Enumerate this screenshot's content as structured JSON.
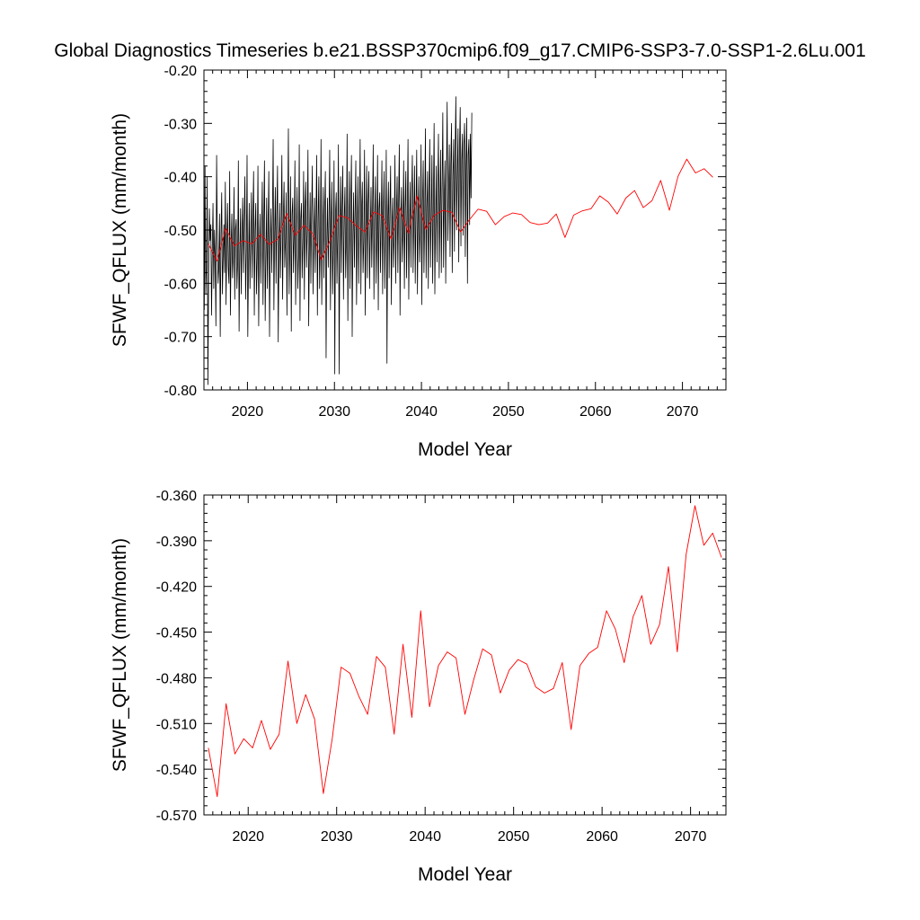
{
  "title": "Global Diagnostics Timeseries b.e21.BSSP370cmip6.f09_g17.CMIP6-SSP3-7.0-SSP1-2.6Lu.001",
  "colors": {
    "monthly": "#000000",
    "annual": "#ff0000"
  },
  "chart_data": [
    {
      "type": "line",
      "ylabel": "SFWF_QFLUX (mm/month)",
      "xlabel": "Model Year",
      "xlim": [
        2015,
        2075
      ],
      "ylim": [
        -0.8,
        -0.2
      ],
      "x_ticks": [
        2020,
        2030,
        2040,
        2050,
        2060,
        2070
      ],
      "x_tick_labels": [
        "2020",
        "2030",
        "2040",
        "2050",
        "2060",
        "2070"
      ],
      "y_ticks": [
        -0.2,
        -0.3,
        -0.4,
        -0.5,
        -0.6,
        -0.7,
        -0.8
      ],
      "y_tick_labels": [
        "-0.20",
        "-0.30",
        "-0.40",
        "-0.50",
        "-0.60",
        "-0.70",
        "-0.80"
      ],
      "grid": false,
      "series": [
        {
          "kind": "monthly",
          "color": "#000000",
          "x_start": 2015.04,
          "x_step": 0.08333,
          "values": [
            -0.65,
            -0.38,
            -0.62,
            -0.57,
            -0.4,
            -0.79,
            -0.58,
            -0.46,
            -0.52,
            -0.49,
            -0.66,
            -0.54,
            -0.45,
            -0.61,
            -0.5,
            -0.55,
            -0.68,
            -0.36,
            -0.52,
            -0.6,
            -0.57,
            -0.47,
            -0.7,
            -0.51,
            -0.43,
            -0.62,
            -0.55,
            -0.49,
            -0.58,
            -0.41,
            -0.64,
            -0.52,
            -0.45,
            -0.57,
            -0.6,
            -0.39,
            -0.66,
            -0.53,
            -0.47,
            -0.59,
            -0.55,
            -0.42,
            -0.63,
            -0.5,
            -0.48,
            -0.61,
            -0.56,
            -0.37,
            -0.69,
            -0.54,
            -0.46,
            -0.62,
            -0.51,
            -0.44,
            -0.58,
            -0.49,
            -0.4,
            -0.63,
            -0.54,
            -0.36,
            -0.7,
            -0.56,
            -0.45,
            -0.61,
            -0.52,
            -0.43,
            -0.59,
            -0.48,
            -0.39,
            -0.66,
            -0.5,
            -0.45,
            -0.62,
            -0.55,
            -0.38,
            -0.68,
            -0.53,
            -0.47,
            -0.6,
            -0.51,
            -0.41,
            -0.64,
            -0.49,
            -0.37,
            -0.67,
            -0.55,
            -0.44,
            -0.61,
            -0.5,
            -0.39,
            -0.7,
            -0.52,
            -0.46,
            -0.58,
            -0.48,
            -0.33,
            -0.65,
            -0.51,
            -0.42,
            -0.6,
            -0.47,
            -0.38,
            -0.71,
            -0.54,
            -0.45,
            -0.59,
            -0.5,
            -0.36,
            -0.63,
            -0.48,
            -0.41,
            -0.57,
            -0.52,
            -0.43,
            -0.66,
            -0.49,
            -0.31,
            -0.62,
            -0.53,
            -0.4,
            -0.69,
            -0.47,
            -0.44,
            -0.58,
            -0.51,
            -0.37,
            -0.64,
            -0.5,
            -0.42,
            -0.61,
            -0.55,
            -0.34,
            -0.67,
            -0.48,
            -0.45,
            -0.59,
            -0.52,
            -0.39,
            -0.63,
            -0.46,
            -0.41,
            -0.57,
            -0.5,
            -0.35,
            -0.68,
            -0.53,
            -0.43,
            -0.6,
            -0.47,
            -0.38,
            -0.62,
            -0.51,
            -0.44,
            -0.58,
            -0.49,
            -0.36,
            -0.66,
            -0.48,
            -0.4,
            -0.61,
            -0.54,
            -0.33,
            -0.64,
            -0.5,
            -0.42,
            -0.59,
            -0.46,
            -0.39,
            -0.74,
            -0.52,
            -0.44,
            -0.57,
            -0.48,
            -0.35,
            -0.65,
            -0.49,
            -0.41,
            -0.62,
            -0.53,
            -0.37,
            -0.77,
            -0.47,
            -0.43,
            -0.6,
            -0.51,
            -0.34,
            -0.77,
            -0.5,
            -0.4,
            -0.58,
            -0.46,
            -0.38,
            -0.63,
            -0.48,
            -0.42,
            -0.59,
            -0.52,
            -0.32,
            -0.67,
            -0.49,
            -0.39,
            -0.61,
            -0.45,
            -0.36,
            -0.7,
            -0.51,
            -0.43,
            -0.57,
            -0.47,
            -0.37,
            -0.64,
            -0.5,
            -0.4,
            -0.6,
            -0.48,
            -0.33,
            -0.62,
            -0.46,
            -0.41,
            -0.58,
            -0.52,
            -0.35,
            -0.66,
            -0.49,
            -0.38,
            -0.59,
            -0.45,
            -0.39,
            -0.61,
            -0.5,
            -0.42,
            -0.57,
            -0.47,
            -0.34,
            -0.63,
            -0.48,
            -0.4,
            -0.6,
            -0.51,
            -0.36,
            -0.65,
            -0.46,
            -0.43,
            -0.58,
            -0.49,
            -0.37,
            -0.62,
            -0.47,
            -0.39,
            -0.61,
            -0.5,
            -0.35,
            -0.75,
            -0.48,
            -0.41,
            -0.59,
            -0.46,
            -0.38,
            -0.64,
            -0.49,
            -0.44,
            -0.57,
            -0.51,
            -0.36,
            -0.6,
            -0.47,
            -0.4,
            -0.58,
            -0.45,
            -0.34,
            -0.66,
            -0.48,
            -0.42,
            -0.56,
            -0.5,
            -0.37,
            -0.61,
            -0.46,
            -0.39,
            -0.59,
            -0.47,
            -0.33,
            -0.63,
            -0.49,
            -0.41,
            -0.57,
            -0.44,
            -0.36,
            -0.58,
            -0.48,
            -0.38,
            -0.6,
            -0.46,
            -0.35,
            -0.62,
            -0.47,
            -0.4,
            -0.56,
            -0.5,
            -0.34,
            -0.64,
            -0.45,
            -0.37,
            -0.58,
            -0.48,
            -0.31,
            -0.59,
            -0.46,
            -0.39,
            -0.61,
            -0.44,
            -0.33,
            -0.57,
            -0.47,
            -0.36,
            -0.6,
            -0.45,
            -0.3,
            -0.62,
            -0.48,
            -0.38,
            -0.56,
            -0.43,
            -0.32,
            -0.59,
            -0.46,
            -0.35,
            -0.58,
            -0.42,
            -0.28,
            -0.57,
            -0.44,
            -0.37,
            -0.6,
            -0.41,
            -0.26,
            -0.52,
            -0.43,
            -0.34,
            -0.55,
            -0.38,
            -0.3,
            -0.58,
            -0.4,
            -0.33,
            -0.54,
            -0.36,
            -0.25,
            -0.5,
            -0.39,
            -0.31,
            -0.56,
            -0.35,
            -0.27,
            -0.53,
            -0.37,
            -0.32,
            -0.51,
            -0.34,
            -0.3,
            -0.55,
            -0.38,
            -0.29,
            -0.6,
            -0.36,
            -0.33,
            -0.49,
            -0.32,
            -0.44,
            -0.28
          ]
        },
        {
          "kind": "annual",
          "color": "#ff0000",
          "x": [
            2015.5,
            2016.5,
            2017.5,
            2018.5,
            2019.5,
            2020.5,
            2021.5,
            2022.5,
            2023.5,
            2024.5,
            2025.5,
            2026.5,
            2027.5,
            2028.5,
            2029.5,
            2030.5,
            2031.5,
            2032.5,
            2033.5,
            2034.5,
            2035.5,
            2036.5,
            2037.5,
            2038.5,
            2039.5,
            2040.5,
            2041.5,
            2042.5,
            2043.5,
            2044.5,
            2045.5,
            2046.5,
            2047.5,
            2048.5,
            2049.5,
            2050.5,
            2051.5,
            2052.5,
            2053.5,
            2054.5,
            2055.5,
            2056.5,
            2057.5,
            2058.5,
            2059.5,
            2060.5,
            2061.5,
            2062.5,
            2063.5,
            2064.5,
            2065.5,
            2066.5,
            2067.5,
            2068.5,
            2069.5,
            2070.5,
            2071.5,
            2072.5,
            2073.5
          ],
          "values": [
            -0.526,
            -0.558,
            -0.497,
            -0.53,
            -0.52,
            -0.526,
            -0.508,
            -0.527,
            -0.517,
            -0.469,
            -0.51,
            -0.491,
            -0.507,
            -0.556,
            -0.52,
            -0.473,
            -0.477,
            -0.492,
            -0.504,
            -0.466,
            -0.473,
            -0.517,
            -0.458,
            -0.506,
            -0.436,
            -0.499,
            -0.472,
            -0.463,
            -0.467,
            -0.504,
            -0.481,
            -0.461,
            -0.465,
            -0.49,
            -0.475,
            -0.468,
            -0.471,
            -0.486,
            -0.49,
            -0.487,
            -0.47,
            -0.514,
            -0.472,
            -0.464,
            -0.46,
            -0.436,
            -0.448,
            -0.47,
            -0.44,
            -0.426,
            -0.458,
            -0.445,
            -0.407,
            -0.463,
            -0.399,
            -0.367,
            -0.393,
            -0.385,
            -0.401
          ]
        }
      ]
    },
    {
      "type": "line",
      "ylabel": "SFWF_QFLUX (mm/month)",
      "xlabel": "Model Year",
      "xlim": [
        2015,
        2074
      ],
      "ylim": [
        -0.57,
        -0.36
      ],
      "x_ticks": [
        2020,
        2030,
        2040,
        2050,
        2060,
        2070
      ],
      "x_tick_labels": [
        "2020",
        "2030",
        "2040",
        "2050",
        "2060",
        "2070"
      ],
      "y_ticks": [
        -0.36,
        -0.39,
        -0.42,
        -0.45,
        -0.48,
        -0.51,
        -0.54,
        -0.57
      ],
      "y_tick_labels": [
        "-0.360",
        "-0.390",
        "-0.420",
        "-0.450",
        "-0.480",
        "-0.510",
        "-0.540",
        "-0.570"
      ],
      "grid": false,
      "series": [
        {
          "kind": "annual",
          "color": "#ff0000",
          "x": [
            2015.5,
            2016.5,
            2017.5,
            2018.5,
            2019.5,
            2020.5,
            2021.5,
            2022.5,
            2023.5,
            2024.5,
            2025.5,
            2026.5,
            2027.5,
            2028.5,
            2029.5,
            2030.5,
            2031.5,
            2032.5,
            2033.5,
            2034.5,
            2035.5,
            2036.5,
            2037.5,
            2038.5,
            2039.5,
            2040.5,
            2041.5,
            2042.5,
            2043.5,
            2044.5,
            2045.5,
            2046.5,
            2047.5,
            2048.5,
            2049.5,
            2050.5,
            2051.5,
            2052.5,
            2053.5,
            2054.5,
            2055.5,
            2056.5,
            2057.5,
            2058.5,
            2059.5,
            2060.5,
            2061.5,
            2062.5,
            2063.5,
            2064.5,
            2065.5,
            2066.5,
            2067.5,
            2068.5,
            2069.5,
            2070.5,
            2071.5,
            2072.5,
            2073.5
          ],
          "values": [
            -0.526,
            -0.558,
            -0.497,
            -0.53,
            -0.52,
            -0.526,
            -0.508,
            -0.527,
            -0.517,
            -0.469,
            -0.51,
            -0.491,
            -0.507,
            -0.556,
            -0.52,
            -0.473,
            -0.477,
            -0.492,
            -0.504,
            -0.466,
            -0.473,
            -0.517,
            -0.458,
            -0.506,
            -0.436,
            -0.499,
            -0.472,
            -0.463,
            -0.467,
            -0.504,
            -0.481,
            -0.461,
            -0.465,
            -0.49,
            -0.475,
            -0.468,
            -0.471,
            -0.486,
            -0.49,
            -0.487,
            -0.47,
            -0.514,
            -0.472,
            -0.464,
            -0.46,
            -0.436,
            -0.448,
            -0.47,
            -0.44,
            -0.426,
            -0.458,
            -0.445,
            -0.407,
            -0.463,
            -0.399,
            -0.367,
            -0.393,
            -0.385,
            -0.401
          ]
        }
      ]
    }
  ]
}
